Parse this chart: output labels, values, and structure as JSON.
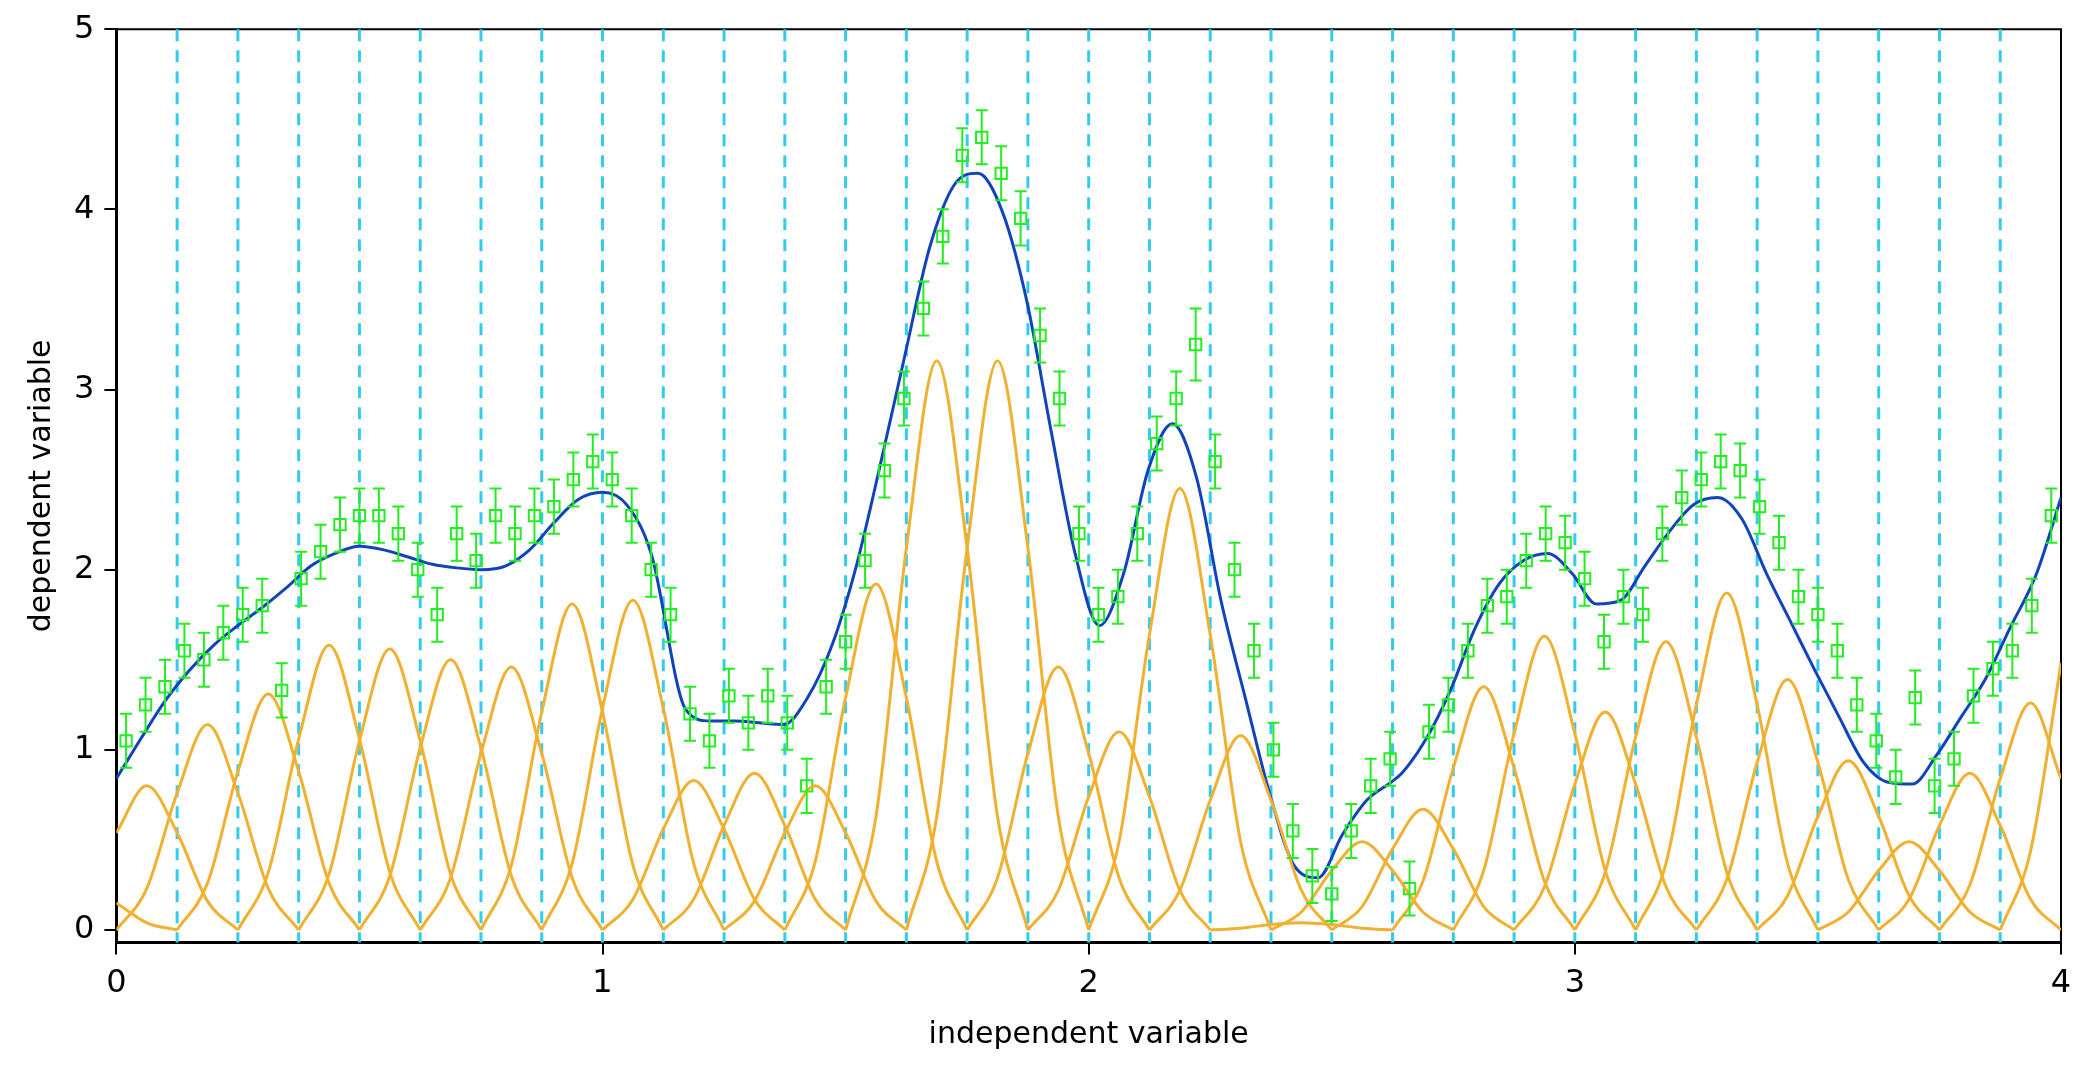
{
  "chart_data": {
    "type": "scatter",
    "xlabel": "independent variable",
    "ylabel": "dependent variable",
    "xlim": [
      0,
      4
    ],
    "xticks": [
      0,
      1,
      2,
      3,
      4
    ],
    "ylim": [
      -0.07,
      5
    ],
    "yticks": [
      0,
      1,
      2,
      3,
      4,
      5
    ],
    "legend": false,
    "ref_lines": [
      {
        "axis": "x",
        "value": 0.125,
        "color": "#33ccee",
        "line_style": "dashed"
      },
      {
        "axis": "x",
        "value": 0.25,
        "color": "#33ccee",
        "line_style": "dashed"
      },
      {
        "axis": "x",
        "value": 0.375,
        "color": "#33ccee",
        "line_style": "dashed"
      },
      {
        "axis": "x",
        "value": 0.5,
        "color": "#33ccee",
        "line_style": "dashed"
      },
      {
        "axis": "x",
        "value": 0.625,
        "color": "#33ccee",
        "line_style": "dashed"
      },
      {
        "axis": "x",
        "value": 0.75,
        "color": "#33ccee",
        "line_style": "dashed"
      },
      {
        "axis": "x",
        "value": 0.875,
        "color": "#33ccee",
        "line_style": "dashed"
      },
      {
        "axis": "x",
        "value": 1,
        "color": "#33ccee",
        "line_style": "dashed"
      },
      {
        "axis": "x",
        "value": 1.125,
        "color": "#33ccee",
        "line_style": "dashed"
      },
      {
        "axis": "x",
        "value": 1.25,
        "color": "#33ccee",
        "line_style": "dashed"
      },
      {
        "axis": "x",
        "value": 1.375,
        "color": "#33ccee",
        "line_style": "dashed"
      },
      {
        "axis": "x",
        "value": 1.5,
        "color": "#33ccee",
        "line_style": "dashed"
      },
      {
        "axis": "x",
        "value": 1.625,
        "color": "#33ccee",
        "line_style": "dashed"
      },
      {
        "axis": "x",
        "value": 1.75,
        "color": "#33ccee",
        "line_style": "dashed"
      },
      {
        "axis": "x",
        "value": 1.875,
        "color": "#33ccee",
        "line_style": "dashed"
      },
      {
        "axis": "x",
        "value": 2,
        "color": "#33ccee",
        "line_style": "dashed"
      },
      {
        "axis": "x",
        "value": 2.125,
        "color": "#33ccee",
        "line_style": "dashed"
      },
      {
        "axis": "x",
        "value": 2.25,
        "color": "#33ccee",
        "line_style": "dashed"
      },
      {
        "axis": "x",
        "value": 2.375,
        "color": "#33ccee",
        "line_style": "dashed"
      },
      {
        "axis": "x",
        "value": 2.5,
        "color": "#33ccee",
        "line_style": "dashed"
      },
      {
        "axis": "x",
        "value": 2.625,
        "color": "#33ccee",
        "line_style": "dashed"
      },
      {
        "axis": "x",
        "value": 2.75,
        "color": "#33ccee",
        "line_style": "dashed"
      },
      {
        "axis": "x",
        "value": 2.875,
        "color": "#33ccee",
        "line_style": "dashed"
      },
      {
        "axis": "x",
        "value": 3,
        "color": "#33ccee",
        "line_style": "dashed"
      },
      {
        "axis": "x",
        "value": 3.125,
        "color": "#33ccee",
        "line_style": "dashed"
      },
      {
        "axis": "x",
        "value": 3.25,
        "color": "#33ccee",
        "line_style": "dashed"
      },
      {
        "axis": "x",
        "value": 3.375,
        "color": "#33ccee",
        "line_style": "dashed"
      },
      {
        "axis": "x",
        "value": 3.5,
        "color": "#33ccee",
        "line_style": "dashed"
      },
      {
        "axis": "x",
        "value": 3.625,
        "color": "#33ccee",
        "line_style": "dashed"
      },
      {
        "axis": "x",
        "value": 3.75,
        "color": "#33ccee",
        "line_style": "dashed"
      },
      {
        "axis": "x",
        "value": 3.875,
        "color": "#33ccee",
        "line_style": "dashed"
      }
    ],
    "series": [
      {
        "type": "line",
        "marker": "none",
        "color": "#f0b030",
        "x": [
          0,
          0.0625,
          0.125
        ],
        "values": [
          0.15,
          0.04,
          0
        ]
      },
      {
        "type": "line",
        "marker": "none",
        "color": "#f0b030",
        "x": [
          0,
          0.0625,
          0.125,
          0.1875,
          0.25
        ],
        "values": [
          0.54,
          0.8,
          0.54,
          0.16,
          0
        ]
      },
      {
        "type": "line",
        "marker": "none",
        "color": "#f0b030",
        "x": [
          0,
          0.0625,
          0.125,
          0.1875,
          0.25,
          0.3125,
          0.375
        ],
        "values": [
          0,
          0.23,
          0.76,
          1.14,
          0.76,
          0.23,
          0
        ]
      },
      {
        "type": "line",
        "marker": "none",
        "color": "#f0b030",
        "x": [
          0.125,
          0.1875,
          0.25,
          0.3125,
          0.375,
          0.4375,
          0.5
        ],
        "values": [
          0,
          0.26,
          0.88,
          1.31,
          0.88,
          0.26,
          0
        ]
      },
      {
        "type": "line",
        "marker": "none",
        "color": "#f0b030",
        "x": [
          0.25,
          0.3125,
          0.375,
          0.4375,
          0.5,
          0.5625,
          0.625
        ],
        "values": [
          0,
          0.32,
          1.06,
          1.58,
          1.06,
          0.32,
          0
        ]
      },
      {
        "type": "line",
        "marker": "none",
        "color": "#f0b030",
        "x": [
          0.375,
          0.4375,
          0.5,
          0.5625,
          0.625,
          0.6875,
          0.75
        ],
        "values": [
          0,
          0.31,
          1.05,
          1.56,
          1.05,
          0.31,
          0
        ]
      },
      {
        "type": "line",
        "marker": "none",
        "color": "#f0b030",
        "x": [
          0.5,
          0.5625,
          0.625,
          0.6875,
          0.75,
          0.8125,
          0.875
        ],
        "values": [
          0,
          0.3,
          1.01,
          1.5,
          1.01,
          0.3,
          0
        ]
      },
      {
        "type": "line",
        "marker": "none",
        "color": "#f0b030",
        "x": [
          0.625,
          0.6875,
          0.75,
          0.8125,
          0.875,
          0.9375,
          1
        ],
        "values": [
          0,
          0.29,
          0.98,
          1.46,
          0.98,
          0.29,
          0
        ]
      },
      {
        "type": "line",
        "marker": "none",
        "color": "#f0b030",
        "x": [
          0.75,
          0.8125,
          0.875,
          0.9375,
          1,
          1.0625,
          1.125
        ],
        "values": [
          0,
          0.36,
          1.21,
          1.81,
          1.21,
          0.36,
          0
        ]
      },
      {
        "type": "line",
        "marker": "none",
        "color": "#f0b030",
        "x": [
          0.875,
          0.9375,
          1,
          1.0625,
          1.125,
          1.1875,
          1.25
        ],
        "values": [
          0,
          0.37,
          1.23,
          1.83,
          1.23,
          0.37,
          0
        ]
      },
      {
        "type": "line",
        "marker": "none",
        "color": "#f0b030",
        "x": [
          1,
          1.0625,
          1.125,
          1.1875,
          1.25,
          1.3125,
          1.375
        ],
        "values": [
          0,
          0.17,
          0.56,
          0.83,
          0.56,
          0.17,
          0
        ]
      },
      {
        "type": "line",
        "marker": "none",
        "color": "#f0b030",
        "x": [
          1.125,
          1.1875,
          1.25,
          1.3125,
          1.375,
          1.4375,
          1.5
        ],
        "values": [
          0,
          0.17,
          0.58,
          0.87,
          0.58,
          0.17,
          0
        ]
      },
      {
        "type": "line",
        "marker": "none",
        "color": "#f0b030",
        "x": [
          1.25,
          1.3125,
          1.375,
          1.4375,
          1.5,
          1.5625,
          1.625
        ],
        "values": [
          0,
          0.16,
          0.54,
          0.8,
          0.54,
          0.16,
          0
        ]
      },
      {
        "type": "line",
        "marker": "none",
        "color": "#f0b030",
        "x": [
          1.375,
          1.4375,
          1.5,
          1.5625,
          1.625,
          1.6875,
          1.75
        ],
        "values": [
          0,
          0.38,
          1.29,
          1.92,
          1.29,
          0.38,
          0
        ]
      },
      {
        "type": "line",
        "marker": "none",
        "color": "#f0b030",
        "x": [
          1.5,
          1.5625,
          1.625,
          1.6875,
          1.75,
          1.8125,
          1.875
        ],
        "values": [
          0,
          0.63,
          2.12,
          3.16,
          2.12,
          0.63,
          0
        ]
      },
      {
        "type": "line",
        "marker": "none",
        "color": "#f0b030",
        "x": [
          1.625,
          1.6875,
          1.75,
          1.8125,
          1.875,
          1.9375,
          2
        ],
        "values": [
          0,
          0.63,
          2.12,
          3.16,
          2.12,
          0.63,
          0
        ]
      },
      {
        "type": "line",
        "marker": "none",
        "color": "#f0b030",
        "x": [
          1.75,
          1.8125,
          1.875,
          1.9375,
          2,
          2.0625,
          2.125
        ],
        "values": [
          0,
          0.29,
          0.98,
          1.46,
          0.98,
          0.29,
          0
        ]
      },
      {
        "type": "line",
        "marker": "none",
        "color": "#f0b030",
        "x": [
          1.875,
          1.9375,
          2,
          2.0625,
          2.125,
          2.1875,
          2.25
        ],
        "values": [
          0,
          0.22,
          0.74,
          1.1,
          0.74,
          0.22,
          0
        ]
      },
      {
        "type": "line",
        "marker": "none",
        "color": "#f0b030",
        "x": [
          2,
          2.0625,
          2.125,
          2.1875,
          2.25,
          2.3125,
          2.375
        ],
        "values": [
          0,
          0.49,
          1.64,
          2.45,
          1.64,
          0.49,
          0
        ]
      },
      {
        "type": "line",
        "marker": "none",
        "color": "#f0b030",
        "x": [
          2.125,
          2.1875,
          2.25,
          2.3125,
          2.375,
          2.4375,
          2.5
        ],
        "values": [
          0,
          0.22,
          0.72,
          1.08,
          0.72,
          0.22,
          0
        ]
      },
      {
        "type": "line",
        "marker": "none",
        "color": "#f0b030",
        "x": [
          2.25,
          2.3125,
          2.375,
          2.4375,
          2.5,
          2.5625,
          2.625
        ],
        "values": [
          0,
          0.01,
          0.03,
          0.04,
          0.03,
          0.01,
          0
        ]
      },
      {
        "type": "line",
        "marker": "none",
        "color": "#f0b030",
        "x": [
          2.375,
          2.4375,
          2.5,
          2.5625,
          2.625,
          2.6875,
          2.75
        ],
        "values": [
          0,
          0.1,
          0.33,
          0.49,
          0.33,
          0.1,
          0
        ]
      },
      {
        "type": "line",
        "marker": "none",
        "color": "#f0b030",
        "x": [
          2.5,
          2.5625,
          2.625,
          2.6875,
          2.75,
          2.8125,
          2.875
        ],
        "values": [
          0,
          0.13,
          0.45,
          0.67,
          0.45,
          0.13,
          0
        ]
      },
      {
        "type": "line",
        "marker": "none",
        "color": "#f0b030",
        "x": [
          2.625,
          2.6875,
          2.75,
          2.8125,
          2.875,
          2.9375,
          3
        ],
        "values": [
          0,
          0.27,
          0.9,
          1.35,
          0.9,
          0.27,
          0
        ]
      },
      {
        "type": "line",
        "marker": "none",
        "color": "#f0b030",
        "x": [
          2.75,
          2.8125,
          2.875,
          2.9375,
          3,
          3.0625,
          3.125
        ],
        "values": [
          0,
          0.33,
          1.09,
          1.63,
          1.09,
          0.33,
          0
        ]
      },
      {
        "type": "line",
        "marker": "none",
        "color": "#f0b030",
        "x": [
          2.875,
          2.9375,
          3,
          3.0625,
          3.125,
          3.1875,
          3.25
        ],
        "values": [
          0,
          0.24,
          0.81,
          1.21,
          0.81,
          0.24,
          0
        ]
      },
      {
        "type": "line",
        "marker": "none",
        "color": "#f0b030",
        "x": [
          3,
          3.0625,
          3.125,
          3.1875,
          3.25,
          3.3125,
          3.375
        ],
        "values": [
          0,
          0.32,
          1.07,
          1.6,
          1.07,
          0.32,
          0
        ]
      },
      {
        "type": "line",
        "marker": "none",
        "color": "#f0b030",
        "x": [
          3.125,
          3.1875,
          3.25,
          3.3125,
          3.375,
          3.4375,
          3.5
        ],
        "values": [
          0,
          0.37,
          1.25,
          1.87,
          1.25,
          0.37,
          0
        ]
      },
      {
        "type": "line",
        "marker": "none",
        "color": "#f0b030",
        "x": [
          3.25,
          3.3125,
          3.375,
          3.4375,
          3.5,
          3.5625,
          3.625
        ],
        "values": [
          0,
          0.28,
          0.93,
          1.39,
          0.93,
          0.28,
          0
        ]
      },
      {
        "type": "line",
        "marker": "none",
        "color": "#f0b030",
        "x": [
          3.375,
          3.4375,
          3.5,
          3.5625,
          3.625,
          3.6875,
          3.75
        ],
        "values": [
          0,
          0.19,
          0.63,
          0.94,
          0.63,
          0.19,
          0
        ]
      },
      {
        "type": "line",
        "marker": "none",
        "color": "#f0b030",
        "x": [
          3.5,
          3.5625,
          3.625,
          3.6875,
          3.75,
          3.8125,
          3.875
        ],
        "values": [
          0,
          0.1,
          0.33,
          0.49,
          0.33,
          0.1,
          0
        ]
      },
      {
        "type": "line",
        "marker": "none",
        "color": "#f0b030",
        "x": [
          3.625,
          3.6875,
          3.75,
          3.8125,
          3.875,
          3.9375,
          4
        ],
        "values": [
          0,
          0.17,
          0.58,
          0.87,
          0.58,
          0.17,
          0
        ]
      },
      {
        "type": "line",
        "marker": "none",
        "color": "#f0b030",
        "x": [
          3.75,
          3.8125,
          3.875,
          3.9375,
          4
        ],
        "values": [
          0,
          0.25,
          0.84,
          1.26,
          0.84
        ]
      },
      {
        "type": "line",
        "marker": "none",
        "color": "#f0b030",
        "x": [
          3.875,
          3.9375,
          4
        ],
        "values": [
          0,
          0.44,
          1.48
        ]
      },
      {
        "marker": "square",
        "color": "#22ee22",
        "x": [
          0.02,
          0.06,
          0.1,
          0.14,
          0.18,
          0.22,
          0.26,
          0.3,
          0.34,
          0.38,
          0.42,
          0.46,
          0.5,
          0.54,
          0.58,
          0.62,
          0.66,
          0.7,
          0.74,
          0.78,
          0.82,
          0.86,
          0.9,
          0.94,
          0.98,
          1.02,
          1.06,
          1.1,
          1.14,
          1.18,
          1.22,
          1.26,
          1.3,
          1.34,
          1.38,
          1.42,
          1.46,
          1.5,
          1.54,
          1.58,
          1.62,
          1.66,
          1.7,
          1.74,
          1.78,
          1.82,
          1.86,
          1.9,
          1.94,
          1.98,
          2.02,
          2.06,
          2.1,
          2.14,
          2.18,
          2.22,
          2.26,
          2.3,
          2.34,
          2.38,
          2.42,
          2.46,
          2.5,
          2.54,
          2.58,
          2.62,
          2.66,
          2.7,
          2.74,
          2.78,
          2.82,
          2.86,
          2.9,
          2.94,
          2.98,
          3.02,
          3.06,
          3.1,
          3.14,
          3.18,
          3.22,
          3.26,
          3.3,
          3.34,
          3.38,
          3.42,
          3.46,
          3.5,
          3.54,
          3.58,
          3.62,
          3.66,
          3.7,
          3.74,
          3.78,
          3.82,
          3.86,
          3.9,
          3.94,
          3.98
        ],
        "values": [
          1.05,
          1.25,
          1.35,
          1.55,
          1.5,
          1.65,
          1.75,
          1.8,
          1.33,
          1.95,
          2.1,
          2.25,
          2.3,
          2.3,
          2.2,
          2.0,
          1.75,
          2.2,
          2.05,
          2.3,
          2.2,
          2.3,
          2.35,
          2.5,
          2.6,
          2.5,
          2.3,
          2.0,
          1.75,
          1.2,
          1.05,
          1.3,
          1.15,
          1.3,
          1.15,
          0.8,
          1.35,
          1.6,
          2.05,
          2.55,
          2.95,
          3.45,
          3.85,
          4.3,
          4.4,
          4.2,
          3.95,
          3.3,
          2.95,
          2.2,
          1.75,
          1.85,
          2.2,
          2.7,
          2.95,
          3.25,
          2.6,
          2.0,
          1.55,
          1.0,
          0.55,
          0.3,
          0.2,
          0.55,
          0.8,
          0.95,
          0.23,
          1.1,
          1.25,
          1.55,
          1.8,
          1.85,
          2.05,
          2.2,
          2.15,
          1.95,
          1.6,
          1.85,
          1.75,
          2.2,
          2.4,
          2.5,
          2.6,
          2.55,
          2.35,
          2.15,
          1.85,
          1.75,
          1.55,
          1.25,
          1.05,
          0.85,
          1.29,
          0.8,
          0.95,
          1.3,
          1.45,
          1.55,
          1.8,
          2.3
        ],
        "errors": [
          0.15,
          0.15,
          0.15,
          0.15,
          0.15,
          0.15,
          0.15,
          0.15,
          0.15,
          0.15,
          0.15,
          0.15,
          0.15,
          0.15,
          0.15,
          0.15,
          0.15,
          0.15,
          0.15,
          0.15,
          0.15,
          0.15,
          0.15,
          0.15,
          0.15,
          0.15,
          0.15,
          0.15,
          0.15,
          0.15,
          0.15,
          0.15,
          0.15,
          0.15,
          0.15,
          0.15,
          0.15,
          0.15,
          0.15,
          0.15,
          0.15,
          0.15,
          0.15,
          0.15,
          0.15,
          0.15,
          0.15,
          0.15,
          0.15,
          0.15,
          0.15,
          0.15,
          0.15,
          0.15,
          0.15,
          0.2,
          0.15,
          0.15,
          0.15,
          0.15,
          0.15,
          0.15,
          0.15,
          0.15,
          0.15,
          0.15,
          0.15,
          0.15,
          0.15,
          0.15,
          0.15,
          0.15,
          0.15,
          0.15,
          0.15,
          0.15,
          0.15,
          0.15,
          0.15,
          0.15,
          0.15,
          0.15,
          0.15,
          0.15,
          0.15,
          0.15,
          0.15,
          0.15,
          0.15,
          0.15,
          0.15,
          0.15,
          0.15,
          0.15,
          0.15,
          0.15,
          0.15,
          0.15,
          0.15,
          0.15
        ]
      },
      {
        "type": "line",
        "marker": "none",
        "color": "#1144bb",
        "x": [
          0,
          0.05,
          0.1,
          0.15,
          0.2,
          0.25,
          0.3,
          0.35,
          0.4,
          0.45,
          0.5,
          0.55,
          0.6,
          0.65,
          0.7,
          0.75,
          0.8,
          0.85,
          0.9,
          0.95,
          1,
          1.05,
          1.1,
          1.172,
          1.222,
          1.272,
          1.322,
          1.372,
          1.422,
          1.472,
          1.522,
          1.572,
          1.622,
          1.672,
          1.722,
          1.772,
          1.822,
          1.872,
          1.922,
          1.972,
          2.022,
          2.072,
          2.122,
          2.172,
          2.222,
          2.272,
          2.322,
          2.372,
          2.422,
          2.472,
          2.522,
          2.572,
          2.622,
          2.644,
          2.694,
          2.744,
          2.794,
          2.844,
          2.894,
          2.944,
          2.994,
          3.044,
          3.094,
          3.144,
          3.194,
          3.244,
          3.294,
          3.344,
          3.394,
          3.444,
          3.494,
          3.544,
          3.594,
          3.644,
          3.694,
          3.744,
          3.794,
          3.844,
          3.894,
          3.95,
          4
        ],
        "values": [
          0.84,
          1.06,
          1.27,
          1.44,
          1.58,
          1.69,
          1.79,
          1.9,
          2.02,
          2.09,
          2.13,
          2.11,
          2.07,
          2.03,
          2.01,
          2.0,
          2.02,
          2.11,
          2.26,
          2.39,
          2.43,
          2.36,
          2.09,
          1.22,
          1.16,
          1.16,
          1.15,
          1.14,
          1.29,
          1.58,
          2.02,
          2.59,
          3.19,
          3.78,
          4.13,
          4.2,
          3.99,
          3.5,
          2.78,
          2.09,
          1.69,
          1.98,
          2.55,
          2.81,
          2.51,
          1.83,
          1.29,
          0.76,
          0.36,
          0.29,
          0.53,
          0.72,
          0.82,
          0.87,
          1.06,
          1.33,
          1.67,
          1.92,
          2.05,
          2.09,
          1.98,
          1.81,
          1.83,
          2.02,
          2.21,
          2.36,
          2.4,
          2.28,
          1.98,
          1.71,
          1.44,
          1.18,
          0.93,
          0.82,
          0.81,
          0.97,
          1.18,
          1.39,
          1.67,
          1.98,
          2.4
        ]
      }
    ]
  }
}
